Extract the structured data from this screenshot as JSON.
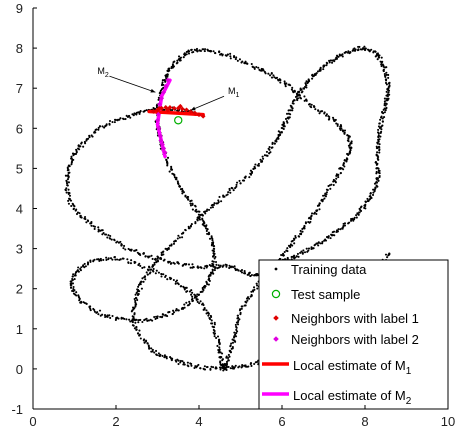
{
  "chart_data": {
    "type": "scatter",
    "xlim": [
      0,
      10
    ],
    "ylim": [
      -1,
      9
    ],
    "x_ticks": [
      "0",
      "2",
      "4",
      "6",
      "8",
      "10"
    ],
    "y_ticks": [
      "-1",
      "0",
      "1",
      "2",
      "3",
      "4",
      "5",
      "6",
      "7",
      "8",
      "9"
    ],
    "grid": false,
    "legend_position": "bottom-right",
    "legend": [
      {
        "label": "Training data",
        "marker": "dot",
        "color": "#000000"
      },
      {
        "label": "Test sample",
        "marker": "circle",
        "color": "#00b000"
      },
      {
        "label": "Neighbors with label 1",
        "marker": "diamond",
        "color": "#e00000"
      },
      {
        "label": "Neighbors with label 2",
        "marker": "diamond",
        "color": "#e000e0"
      },
      {
        "label": "Local estimate of M",
        "subscript": "1",
        "marker": "line",
        "color": "#ff0000"
      },
      {
        "label": "Local estimate of M",
        "subscript": "2",
        "marker": "line",
        "color": "#ff00ff"
      }
    ],
    "annotations": [
      {
        "text": "M",
        "subscript": "1",
        "x": 4.7,
        "y": 6.85,
        "arrow_to": [
          3.8,
          6.45
        ]
      },
      {
        "text": "M",
        "subscript": "2",
        "x": 1.6,
        "y": 7.35,
        "arrow_to": [
          2.95,
          6.9
        ]
      }
    ],
    "test_sample": {
      "x": 3.5,
      "y": 6.2
    },
    "curve_1_knots": [
      [
        3.9,
        6.35
      ],
      [
        3.2,
        6.5
      ],
      [
        2.5,
        6.35
      ],
      [
        1.7,
        6.05
      ],
      [
        1.1,
        5.5
      ],
      [
        0.85,
        4.9
      ],
      [
        0.9,
        4.15
      ],
      [
        1.5,
        3.55
      ],
      [
        2.2,
        3.05
      ],
      [
        3.0,
        2.75
      ],
      [
        3.9,
        2.55
      ],
      [
        4.7,
        2.55
      ],
      [
        5.3,
        2.35
      ],
      [
        5.8,
        2.6
      ],
      [
        6.4,
        2.85
      ],
      [
        7.0,
        3.2
      ],
      [
        7.6,
        3.65
      ],
      [
        8.05,
        4.15
      ],
      [
        8.3,
        4.7
      ],
      [
        8.3,
        5.3
      ],
      [
        8.35,
        5.95
      ],
      [
        8.5,
        6.6
      ],
      [
        8.55,
        7.15
      ],
      [
        8.35,
        7.75
      ],
      [
        7.9,
        8.0
      ],
      [
        7.3,
        7.75
      ],
      [
        6.8,
        7.35
      ],
      [
        6.4,
        6.85
      ],
      [
        6.1,
        6.2
      ],
      [
        5.8,
        5.6
      ],
      [
        5.3,
        4.95
      ],
      [
        4.65,
        4.35
      ],
      [
        4.0,
        3.75
      ],
      [
        3.3,
        3.05
      ],
      [
        2.8,
        2.45
      ],
      [
        2.5,
        1.8
      ],
      [
        2.45,
        1.1
      ],
      [
        2.9,
        0.45
      ],
      [
        3.6,
        0.15
      ],
      [
        4.4,
        0.0
      ],
      [
        5.2,
        0.1
      ],
      [
        6.0,
        0.4
      ],
      [
        6.8,
        0.8
      ],
      [
        7.5,
        1.45
      ],
      [
        8.1,
        2.2
      ],
      [
        8.6,
        2.9
      ]
    ],
    "curve_1_closed": false,
    "curve_2_knots": [
      [
        3.0,
        6.4
      ],
      [
        3.05,
        5.8
      ],
      [
        3.3,
        5.0
      ],
      [
        3.7,
        4.3
      ],
      [
        4.1,
        3.65
      ],
      [
        4.35,
        3.0
      ],
      [
        4.3,
        2.35
      ],
      [
        3.9,
        1.75
      ],
      [
        3.2,
        1.35
      ],
      [
        2.4,
        1.2
      ],
      [
        1.5,
        1.45
      ],
      [
        0.95,
        2.0
      ],
      [
        1.2,
        2.55
      ],
      [
        2.0,
        2.75
      ],
      [
        3.0,
        2.4
      ],
      [
        3.8,
        1.9
      ],
      [
        4.3,
        1.2
      ],
      [
        4.5,
        0.45
      ],
      [
        4.6,
        0.05
      ],
      [
        4.8,
        0.6
      ],
      [
        5.0,
        1.4
      ],
      [
        5.5,
        2.2
      ],
      [
        6.1,
        2.95
      ],
      [
        6.6,
        3.6
      ],
      [
        7.0,
        4.25
      ],
      [
        7.4,
        4.95
      ],
      [
        7.65,
        5.55
      ],
      [
        7.4,
        6.05
      ],
      [
        6.75,
        6.55
      ],
      [
        6.1,
        7.1
      ],
      [
        5.4,
        7.5
      ],
      [
        4.6,
        7.85
      ],
      [
        3.9,
        7.95
      ],
      [
        3.4,
        7.6
      ],
      [
        3.15,
        7.1
      ]
    ],
    "curve_2_closed": true,
    "neighbors_label_1": [
      [
        2.9,
        6.42
      ],
      [
        3.0,
        6.46
      ],
      [
        3.1,
        6.5
      ],
      [
        3.2,
        6.52
      ],
      [
        3.3,
        6.52
      ],
      [
        3.4,
        6.5
      ],
      [
        3.5,
        6.5
      ],
      [
        3.6,
        6.48
      ],
      [
        3.7,
        6.46
      ],
      [
        3.8,
        6.42
      ],
      [
        3.9,
        6.38
      ],
      [
        4.0,
        6.34
      ],
      [
        4.1,
        6.3
      ],
      [
        3.25,
        6.45
      ],
      [
        3.55,
        6.55
      ],
      [
        3.05,
        6.5
      ]
    ],
    "neighbors_label_2": [
      [
        3.02,
        6.35
      ],
      [
        3.0,
        6.2
      ],
      [
        3.03,
        6.0
      ],
      [
        3.07,
        5.8
      ],
      [
        3.12,
        5.6
      ],
      [
        3.18,
        5.4
      ],
      [
        3.05,
        6.6
      ],
      [
        3.1,
        6.75
      ],
      [
        3.15,
        6.9
      ],
      [
        3.2,
        7.05
      ],
      [
        3.25,
        7.2
      ],
      [
        3.08,
        5.7
      ],
      [
        3.15,
        5.5
      ]
    ],
    "local_estimate_M1": [
      [
        2.8,
        6.42
      ],
      [
        4.1,
        6.34
      ]
    ],
    "local_estimate_M2": [
      [
        3.18,
        5.3
      ],
      [
        3.0,
        6.1
      ],
      [
        3.1,
        6.8
      ],
      [
        3.3,
        7.2
      ]
    ]
  }
}
